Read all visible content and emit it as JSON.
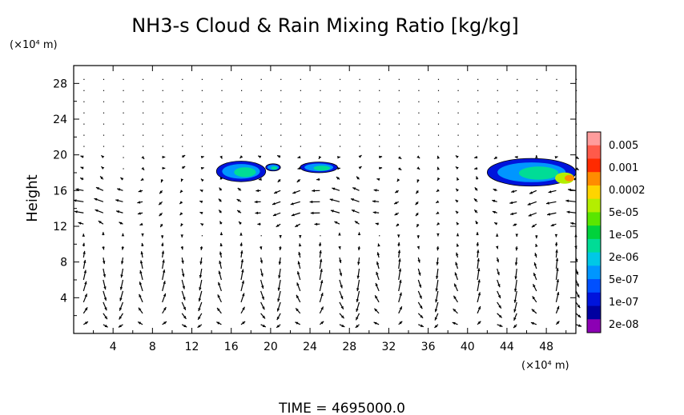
{
  "chart_data": {
    "type": "vector-field-contour",
    "title": "NH3-s Cloud & Rain Mixing Ratio [kg/kg]",
    "ylabel": "Height",
    "y_unit": "(×10⁴ m)",
    "x_unit": "(×10⁴ m)",
    "xlim": [
      0,
      51
    ],
    "ylim": [
      0,
      30
    ],
    "x_ticks": [
      "4",
      "8",
      "12",
      "16",
      "20",
      "24",
      "28",
      "32",
      "36",
      "40",
      "44",
      "48"
    ],
    "y_ticks": [
      "4",
      "8",
      "12",
      "16",
      "20",
      "24",
      "28"
    ],
    "grid": false,
    "legend_position": "right",
    "colorbar": {
      "labels": [
        "0.005",
        "0.001",
        "0.0002",
        "5e-05",
        "1e-05",
        "2e-06",
        "5e-07",
        "1e-07",
        "2e-08"
      ],
      "colors": [
        "#ff9c9c",
        "#ff5a4a",
        "#ff2a00",
        "#ff8c00",
        "#ffd400",
        "#b4ee00",
        "#5ae600",
        "#00d23c",
        "#00dc96",
        "#00c8e6",
        "#0096ff",
        "#0050ff",
        "#0014dc",
        "#0000a0",
        "#8c00b4"
      ]
    },
    "cloud_regions": [
      {
        "x": [
          14.5,
          19.5
        ],
        "y": [
          17.0,
          19.3
        ],
        "value": "1e-07 to 2e-06"
      },
      {
        "x": [
          19.5,
          21.0
        ],
        "y": [
          18.2,
          19.0
        ],
        "value": "1e-07"
      },
      {
        "x": [
          23.0,
          26.8
        ],
        "y": [
          18.0,
          19.2
        ],
        "value": "1e-07 to 5e-07"
      },
      {
        "x": [
          42.0,
          51.0
        ],
        "y": [
          16.5,
          19.6
        ],
        "value": "2e-08 to 0.0002"
      }
    ],
    "footer": "TIME = 4695000.0"
  }
}
